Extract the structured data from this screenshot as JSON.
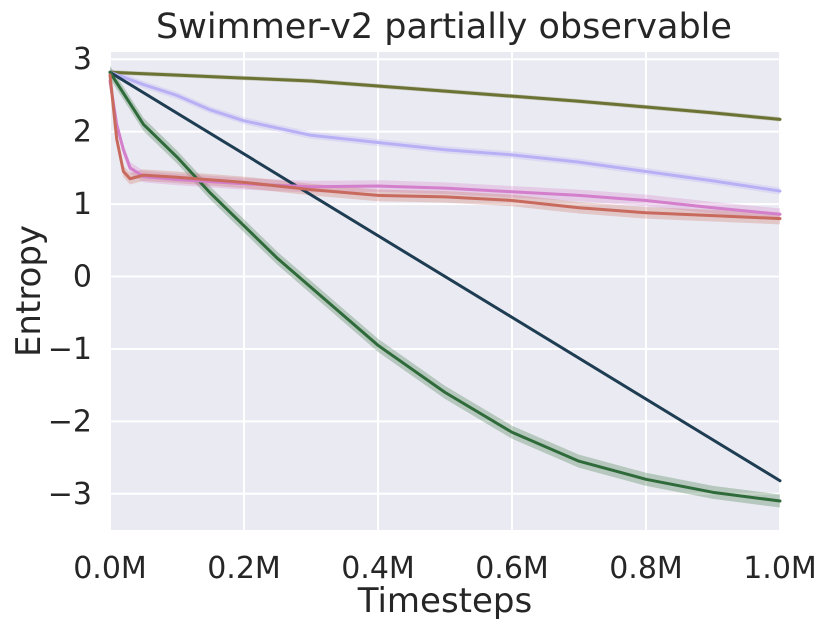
{
  "chart_data": {
    "type": "line",
    "title": "Swimmer-v2 partially observable",
    "xlabel": "Timesteps",
    "ylabel": "Entropy",
    "xlim": [
      0,
      1.0
    ],
    "ylim": [
      -3.5,
      3.1
    ],
    "grid": true,
    "background": "#eaeaf2",
    "x_ticks": [
      {
        "value": 0.0,
        "label": "0.0M"
      },
      {
        "value": 0.2,
        "label": "0.2M"
      },
      {
        "value": 0.4,
        "label": "0.4M"
      },
      {
        "value": 0.6,
        "label": "0.6M"
      },
      {
        "value": 0.8,
        "label": "0.8M"
      },
      {
        "value": 1.0,
        "label": "1.0M"
      }
    ],
    "y_ticks": [
      {
        "value": 3,
        "label": "3"
      },
      {
        "value": 2,
        "label": "2"
      },
      {
        "value": 1,
        "label": "1"
      },
      {
        "value": 0,
        "label": "0"
      },
      {
        "value": -1,
        "label": "−1"
      },
      {
        "value": -2,
        "label": "−2"
      },
      {
        "value": -3,
        "label": "−3"
      }
    ],
    "series": [
      {
        "name": "olive",
        "color": "#6b7234",
        "band": 0.03,
        "x": [
          0,
          0.1,
          0.2,
          0.3,
          0.4,
          0.5,
          0.6,
          0.7,
          0.8,
          0.9,
          1.0
        ],
        "y": [
          2.82,
          2.78,
          2.74,
          2.7,
          2.63,
          2.56,
          2.49,
          2.42,
          2.34,
          2.26,
          2.17
        ]
      },
      {
        "name": "lavender",
        "color": "#b8b0f5",
        "band": 0.05,
        "x": [
          0,
          0.05,
          0.1,
          0.15,
          0.2,
          0.3,
          0.4,
          0.5,
          0.6,
          0.7,
          0.8,
          0.9,
          1.0
        ],
        "y": [
          2.82,
          2.65,
          2.5,
          2.3,
          2.15,
          1.95,
          1.85,
          1.75,
          1.68,
          1.58,
          1.45,
          1.32,
          1.18
        ]
      },
      {
        "name": "navy",
        "color": "#1e3d52",
        "band": 0.02,
        "x": [
          0,
          1.0
        ],
        "y": [
          2.82,
          -2.82
        ]
      },
      {
        "name": "green",
        "color": "#2f6b3a",
        "band": 0.09,
        "x": [
          0,
          0.05,
          0.1,
          0.15,
          0.2,
          0.25,
          0.3,
          0.4,
          0.5,
          0.6,
          0.7,
          0.8,
          0.9,
          1.0
        ],
        "y": [
          2.82,
          2.1,
          1.65,
          1.15,
          0.7,
          0.25,
          -0.15,
          -0.95,
          -1.6,
          -2.15,
          -2.55,
          -2.8,
          -2.98,
          -3.1
        ]
      },
      {
        "name": "pink",
        "color": "#d47fcc",
        "band": 0.08,
        "x": [
          0,
          0.01,
          0.02,
          0.03,
          0.05,
          0.1,
          0.2,
          0.3,
          0.4,
          0.5,
          0.6,
          0.7,
          0.8,
          0.9,
          1.0
        ],
        "y": [
          2.7,
          2.1,
          1.75,
          1.5,
          1.38,
          1.34,
          1.28,
          1.24,
          1.25,
          1.22,
          1.17,
          1.12,
          1.05,
          0.95,
          0.86
        ]
      },
      {
        "name": "salmon",
        "color": "#c96a5e",
        "band": 0.08,
        "x": [
          0,
          0.01,
          0.02,
          0.03,
          0.05,
          0.1,
          0.2,
          0.3,
          0.4,
          0.5,
          0.6,
          0.7,
          0.8,
          0.9,
          1.0
        ],
        "y": [
          2.78,
          1.9,
          1.45,
          1.35,
          1.4,
          1.37,
          1.3,
          1.2,
          1.12,
          1.1,
          1.05,
          0.95,
          0.88,
          0.84,
          0.8
        ]
      }
    ]
  }
}
